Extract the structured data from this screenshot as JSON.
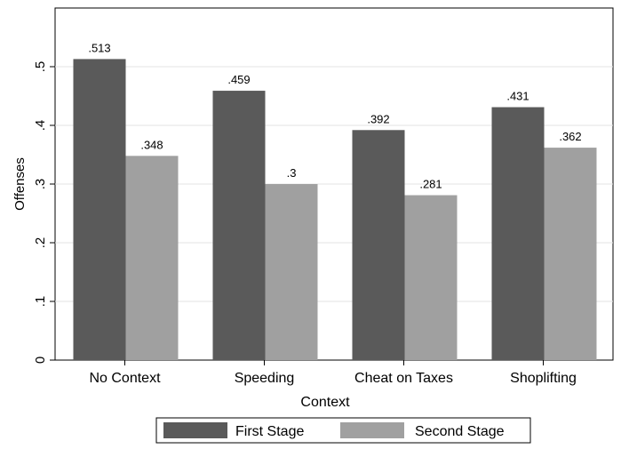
{
  "chart_data": {
    "type": "bar",
    "categories": [
      "No Context",
      "Speeding",
      "Cheat on Taxes",
      "Shoplifting"
    ],
    "series": [
      {
        "name": "First Stage",
        "values": [
          0.513,
          0.459,
          0.392,
          0.431
        ],
        "labels": [
          ".513",
          ".459",
          ".392",
          ".431"
        ],
        "color": "#5a5a5a"
      },
      {
        "name": "Second Stage",
        "values": [
          0.348,
          0.3,
          0.281,
          0.362
        ],
        "labels": [
          ".348",
          ".3",
          ".281",
          ".362"
        ],
        "color": "#a0a0a0"
      }
    ],
    "xlabel": "Context",
    "ylabel": "Offenses",
    "ylim": [
      0,
      0.6
    ],
    "yticks": [
      0,
      0.1,
      0.2,
      0.3,
      0.4,
      0.5
    ],
    "ytick_labels": [
      "0",
      ".1",
      ".2",
      ".3",
      ".4",
      ".5"
    ],
    "grid": true,
    "legend_position": "bottom"
  }
}
